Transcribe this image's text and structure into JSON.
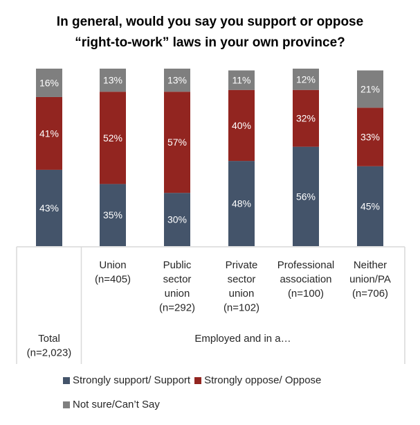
{
  "chart_data": {
    "type": "bar",
    "stacked": true,
    "title": "In general, would you say you support or oppose “right-to-work” laws in your own province?",
    "title_lines": [
      "In general, would you say you support or oppose",
      "“right-to-work” laws in your own province?"
    ],
    "categories": [
      [
        "Total",
        "(n=2,023)"
      ],
      [
        "Union",
        "(n=405)"
      ],
      [
        "Public",
        "sector",
        "union",
        "(n=292)"
      ],
      [
        "Private",
        "sector",
        "union",
        "(n=102)"
      ],
      [
        "Professional",
        "association",
        "(n=100)"
      ],
      [
        "Neither",
        "union/PA",
        "(n=706)"
      ]
    ],
    "group_label": "Employed and in a…",
    "series": [
      {
        "name": "Strongly support/ Support",
        "color": "#44546A",
        "values": [
          43,
          35,
          30,
          48,
          56,
          45
        ]
      },
      {
        "name": "Strongly oppose/ Oppose",
        "color": "#922520",
        "values": [
          41,
          52,
          57,
          40,
          32,
          33
        ]
      },
      {
        "name": "Not sure/Can’t Say",
        "color": "#7F7F7F",
        "values": [
          16,
          13,
          13,
          11,
          12,
          21
        ]
      }
    ],
    "ylim": [
      0,
      100
    ],
    "value_format": "percent",
    "grid": false,
    "legend_position": "bottom"
  }
}
